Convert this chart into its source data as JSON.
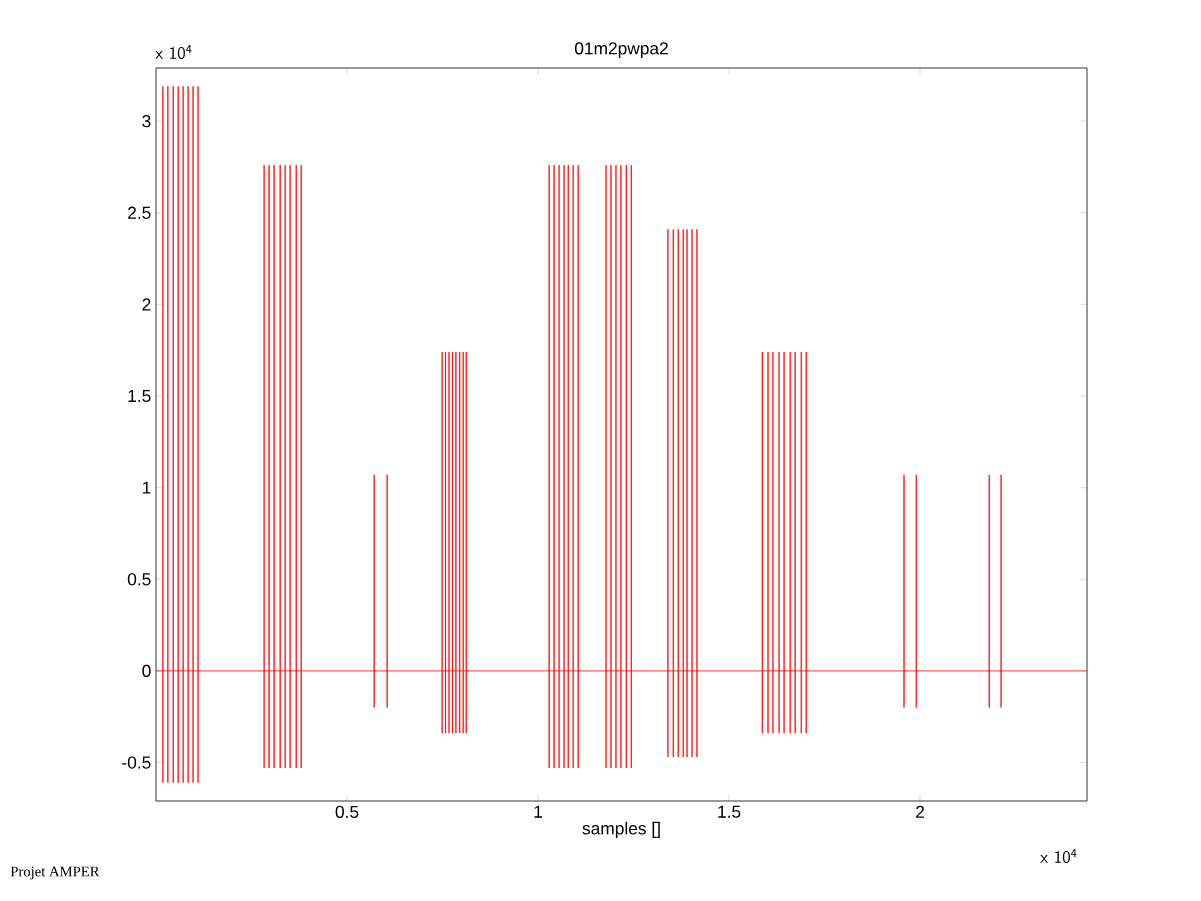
{
  "chart_data": {
    "type": "line",
    "title": "01m2pwpa2",
    "xlabel": "samples []",
    "annotations": [
      "x 10$^{4}$",
      "x 10$^{4}$",
      "Projet AMPER"
    ],
    "xlim": [
      0,
      2.437
    ],
    "ylim": [
      -0.71,
      3.29
    ],
    "xticks": [
      0.5,
      1,
      1.5,
      2
    ],
    "yticks": [
      -0.5,
      0,
      0.5,
      1,
      1.5,
      2,
      2.5,
      3
    ],
    "x": [
      0,
      0.018,
      0.018,
      0.018,
      0.018,
      0.031,
      0.031,
      0.031,
      0.031,
      0.045,
      0.045,
      0.045,
      0.045,
      0.058,
      0.058,
      0.058,
      0.058,
      0.071,
      0.071,
      0.071,
      0.071,
      0.084,
      0.084,
      0.084,
      0.084,
      0.097,
      0.097,
      0.097,
      0.097,
      0.11,
      0.11,
      0.11,
      0.11,
      0.283,
      0.283,
      0.283,
      0.283,
      0.296,
      0.296,
      0.296,
      0.296,
      0.309,
      0.309,
      0.309,
      0.309,
      0.325,
      0.325,
      0.325,
      0.325,
      0.338,
      0.338,
      0.338,
      0.338,
      0.351,
      0.351,
      0.351,
      0.351,
      0.367,
      0.367,
      0.367,
      0.367,
      0.38,
      0.38,
      0.38,
      0.38,
      0.571,
      0.571,
      0.571,
      0.571,
      0.605,
      0.605,
      0.605,
      0.605,
      0.749,
      0.749,
      0.749,
      0.749,
      0.758,
      0.758,
      0.758,
      0.758,
      0.767,
      0.767,
      0.767,
      0.767,
      0.776,
      0.776,
      0.776,
      0.776,
      0.785,
      0.785,
      0.785,
      0.785,
      0.795,
      0.795,
      0.795,
      0.795,
      0.804,
      0.804,
      0.804,
      0.804,
      0.812,
      0.812,
      0.812,
      0.812,
      1.029,
      1.029,
      1.029,
      1.029,
      1.042,
      1.042,
      1.042,
      1.042,
      1.055,
      1.055,
      1.055,
      1.055,
      1.068,
      1.068,
      1.068,
      1.068,
      1.079,
      1.079,
      1.079,
      1.079,
      1.092,
      1.092,
      1.092,
      1.092,
      1.105,
      1.105,
      1.105,
      1.105,
      1.178,
      1.178,
      1.178,
      1.178,
      1.191,
      1.191,
      1.191,
      1.191,
      1.204,
      1.204,
      1.204,
      1.204,
      1.217,
      1.217,
      1.217,
      1.217,
      1.231,
      1.231,
      1.231,
      1.231,
      1.244,
      1.244,
      1.244,
      1.244,
      1.34,
      1.34,
      1.34,
      1.34,
      1.354,
      1.354,
      1.354,
      1.354,
      1.367,
      1.367,
      1.367,
      1.367,
      1.38,
      1.38,
      1.38,
      1.38,
      1.39,
      1.39,
      1.39,
      1.39,
      1.403,
      1.403,
      1.403,
      1.403,
      1.416,
      1.416,
      1.416,
      1.416,
      1.587,
      1.587,
      1.587,
      1.587,
      1.602,
      1.602,
      1.602,
      1.602,
      1.615,
      1.615,
      1.615,
      1.615,
      1.631,
      1.631,
      1.631,
      1.631,
      1.644,
      1.644,
      1.644,
      1.644,
      1.66,
      1.66,
      1.66,
      1.66,
      1.673,
      1.673,
      1.673,
      1.673,
      1.689,
      1.689,
      1.689,
      1.689,
      1.702,
      1.702,
      1.702,
      1.702,
      1.958,
      1.958,
      1.958,
      1.958,
      1.99,
      1.99,
      1.99,
      1.99,
      2.181,
      2.181,
      2.181,
      2.181,
      2.212,
      2.212,
      2.212,
      2.212,
      2.437
    ],
    "series": [
      {
        "color": "#ff0000",
        "values": [
          0,
          0,
          3.19,
          -0.61,
          0,
          0,
          3.19,
          -0.61,
          0,
          0,
          3.19,
          -0.61,
          0,
          0,
          3.19,
          -0.61,
          0,
          0,
          3.19,
          -0.61,
          0,
          0,
          3.19,
          -0.61,
          0,
          0,
          3.19,
          -0.61,
          0,
          0,
          3.19,
          -0.61,
          0,
          0,
          2.76,
          -0.53,
          0,
          0,
          2.76,
          -0.53,
          0,
          0,
          2.76,
          -0.53,
          0,
          0,
          2.76,
          -0.53,
          0,
          0,
          2.76,
          -0.53,
          0,
          0,
          2.76,
          -0.53,
          0,
          0,
          2.76,
          -0.53,
          0,
          0,
          2.76,
          -0.53,
          0,
          0,
          1.07,
          -0.2,
          0,
          0,
          1.07,
          -0.2,
          0,
          0,
          1.74,
          -0.34,
          0,
          0,
          1.74,
          -0.34,
          0,
          0,
          1.74,
          -0.34,
          0,
          0,
          1.74,
          -0.34,
          0,
          0,
          1.74,
          -0.34,
          0,
          0,
          1.74,
          -0.34,
          0,
          0,
          1.74,
          -0.34,
          0,
          0,
          1.74,
          -0.34,
          0,
          0,
          2.76,
          -0.53,
          0,
          0,
          2.76,
          -0.53,
          0,
          0,
          2.76,
          -0.53,
          0,
          0,
          2.76,
          -0.53,
          0,
          0,
          2.76,
          -0.53,
          0,
          0,
          2.76,
          -0.53,
          0,
          0,
          2.76,
          -0.53,
          0,
          0,
          2.76,
          -0.53,
          0,
          0,
          2.76,
          -0.53,
          0,
          0,
          2.76,
          -0.53,
          0,
          0,
          2.76,
          -0.53,
          0,
          0,
          2.76,
          -0.53,
          0,
          0,
          2.76,
          -0.53,
          0,
          0,
          2.41,
          -0.47,
          0,
          0,
          2.41,
          -0.47,
          0,
          0,
          2.41,
          -0.47,
          0,
          0,
          2.41,
          -0.47,
          0,
          0,
          2.41,
          -0.47,
          0,
          0,
          2.41,
          -0.47,
          0,
          0,
          2.41,
          -0.47,
          0,
          0,
          1.74,
          -0.34,
          0,
          0,
          1.74,
          -0.34,
          0,
          0,
          1.74,
          -0.34,
          0,
          0,
          1.74,
          -0.34,
          0,
          0,
          1.74,
          -0.34,
          0,
          0,
          1.74,
          -0.34,
          0,
          0,
          1.74,
          -0.34,
          0,
          0,
          1.74,
          -0.34,
          0,
          0,
          1.74,
          -0.34,
          0,
          0,
          1.07,
          -0.2,
          0,
          0,
          1.07,
          -0.2,
          0,
          0,
          1.07,
          -0.2,
          0,
          0,
          1.07,
          -0.2,
          0,
          0
        ]
      }
    ]
  }
}
